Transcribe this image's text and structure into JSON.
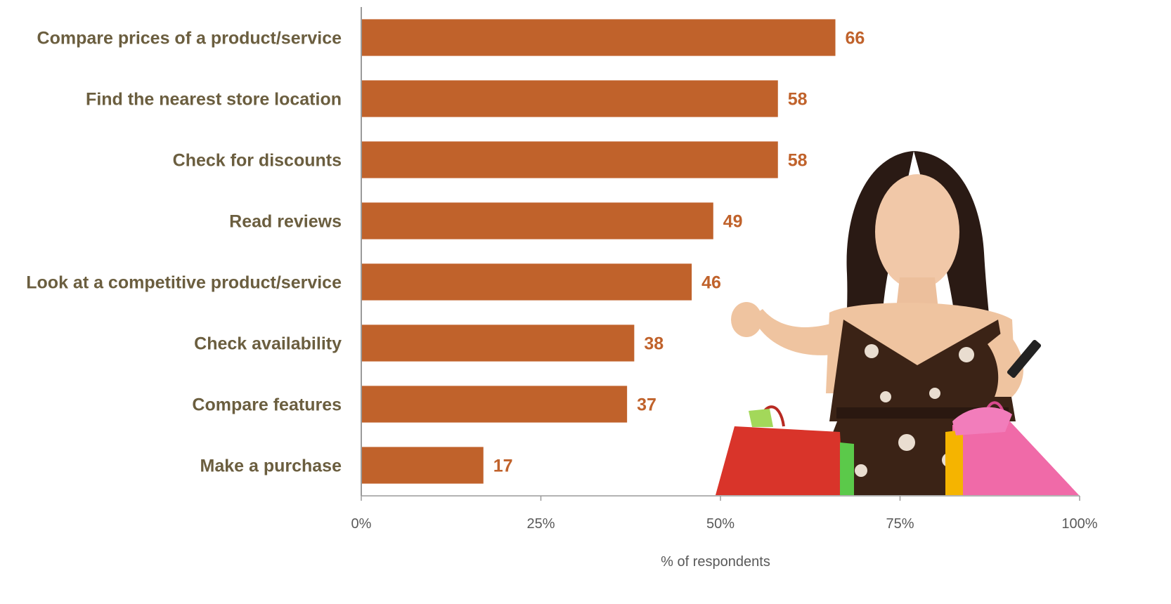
{
  "chart_data": {
    "type": "bar",
    "orientation": "horizontal",
    "categories": [
      "Compare prices of a product/service",
      "Find the nearest store location",
      "Check for discounts",
      "Read reviews",
      "Look at a competitive product/service",
      "Check availability",
      "Compare features",
      "Make a purchase"
    ],
    "values": [
      66,
      58,
      58,
      49,
      46,
      38,
      37,
      17
    ],
    "data_labels": [
      "66",
      "58",
      "58",
      "49",
      "46",
      "38",
      "37",
      "17"
    ],
    "xlabel": "% of  respondents",
    "xlim": [
      0,
      100
    ],
    "x_ticks": [
      "0%",
      "25%",
      "50%",
      "75%",
      "100%"
    ],
    "x_tick_values": [
      0,
      25,
      50,
      75,
      100
    ],
    "grid": false,
    "legend": "none",
    "bar_color": "#c0622b",
    "label_color": "#6b5e3f",
    "value_color": "#c0622b"
  },
  "illustration": {
    "subject": "woman-with-shopping-bags-and-phone"
  }
}
